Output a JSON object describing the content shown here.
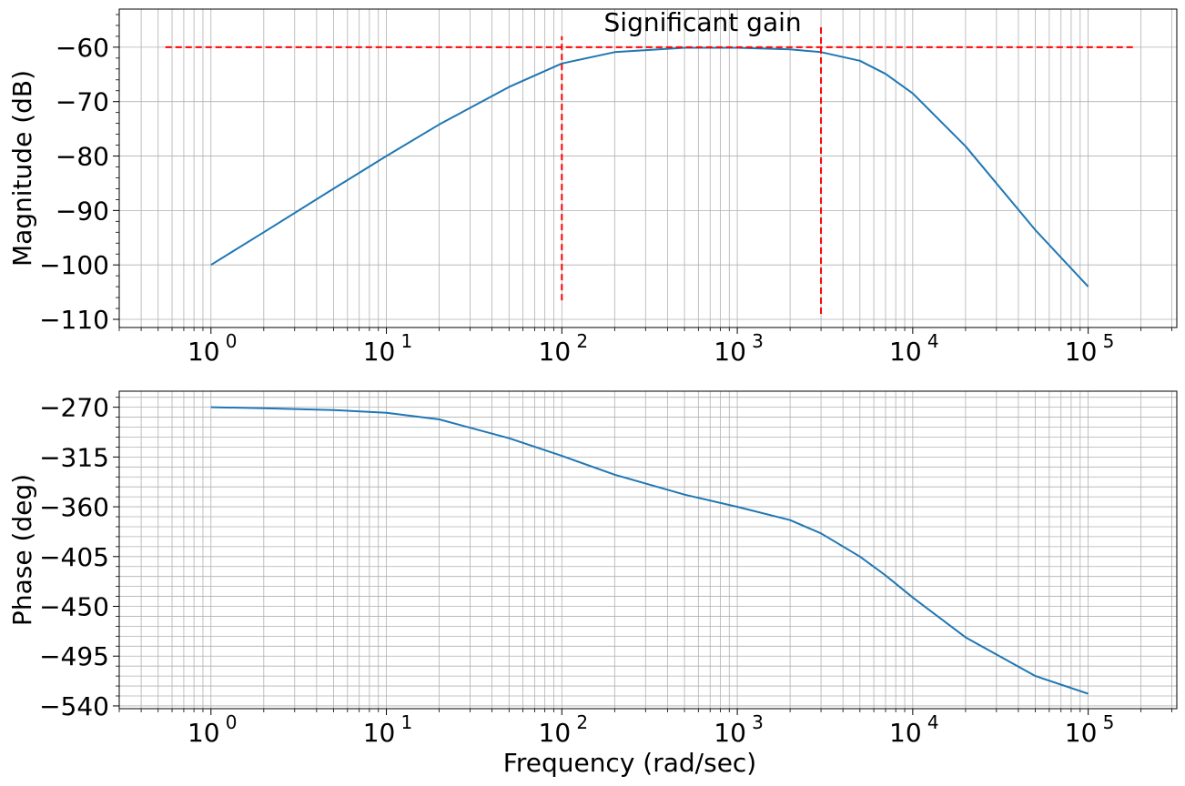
{
  "chart_data": [
    {
      "type": "line",
      "panel": "magnitude",
      "ylabel": "Magnitude (dB)",
      "xlabel": "",
      "x_scale": "log",
      "xlim": [
        0.3,
        320000
      ],
      "ylim": [
        -111.5,
        -53
      ],
      "grid": true,
      "x_ticks": [
        1,
        10,
        100,
        1000,
        10000,
        100000
      ],
      "x_tick_labels": [
        {
          "base": "10",
          "exp": "0"
        },
        {
          "base": "10",
          "exp": "1"
        },
        {
          "base": "10",
          "exp": "2"
        },
        {
          "base": "10",
          "exp": "3"
        },
        {
          "base": "10",
          "exp": "4"
        },
        {
          "base": "10",
          "exp": "5"
        }
      ],
      "y_ticks": [
        -60,
        -70,
        -80,
        -90,
        -100,
        -110
      ],
      "y_tick_labels": [
        "−60",
        "−70",
        "−80",
        "−90",
        "−100",
        "−110"
      ],
      "series": [
        {
          "color": "#1f77b4",
          "x": [
            1,
            2,
            5,
            10,
            20,
            50,
            100,
            200,
            500,
            1000,
            2000,
            3000,
            5000,
            7000,
            10000,
            20000,
            50000,
            100000
          ],
          "y": [
            -100,
            -94,
            -86,
            -80,
            -74.2,
            -67.3,
            -63,
            -60.9,
            -60.1,
            -60.1,
            -60.4,
            -60.9,
            -62.5,
            -64.9,
            -68.5,
            -78.2,
            -93.6,
            -104
          ]
        }
      ],
      "annotations": [
        {
          "type": "hline",
          "y": -60,
          "x_from": 0.55,
          "x_to": 180000,
          "color": "#ff0000",
          "style": "dashed"
        },
        {
          "type": "vline",
          "x": 100,
          "y_from": -106.5,
          "y_to": -58,
          "color": "#ff0000",
          "style": "dashed"
        },
        {
          "type": "vline",
          "x": 3000,
          "y_from": -109,
          "y_to": -56,
          "color": "#ff0000",
          "style": "dashed"
        },
        {
          "type": "text",
          "text": "Significant gain",
          "x": 1000,
          "y": -56
        }
      ]
    },
    {
      "type": "line",
      "panel": "phase",
      "ylabel": "Phase (deg)",
      "xlabel": "Frequency (rad/sec)",
      "x_scale": "log",
      "xlim": [
        0.3,
        320000
      ],
      "ylim": [
        -542.5,
        -255.5
      ],
      "grid": true,
      "x_ticks": [
        1,
        10,
        100,
        1000,
        10000,
        100000
      ],
      "x_tick_labels": [
        {
          "base": "10",
          "exp": "0"
        },
        {
          "base": "10",
          "exp": "1"
        },
        {
          "base": "10",
          "exp": "2"
        },
        {
          "base": "10",
          "exp": "3"
        },
        {
          "base": "10",
          "exp": "4"
        },
        {
          "base": "10",
          "exp": "5"
        }
      ],
      "y_ticks": [
        -270,
        -315,
        -360,
        -405,
        -450,
        -495,
        -540
      ],
      "y_tick_labels": [
        "−270",
        "−315",
        "−360",
        "−405",
        "−450",
        "−495",
        "−540"
      ],
      "series": [
        {
          "color": "#1f77b4",
          "x": [
            1,
            2,
            5,
            10,
            20,
            50,
            100,
            200,
            500,
            1000,
            2000,
            3000,
            5000,
            7000,
            10000,
            20000,
            50000,
            100000
          ],
          "y": [
            -270,
            -271,
            -272.5,
            -275,
            -281,
            -298,
            -314,
            -331,
            -349,
            -360,
            -372,
            -384,
            -405,
            -422,
            -442,
            -478,
            -513,
            -529
          ]
        }
      ]
    }
  ]
}
